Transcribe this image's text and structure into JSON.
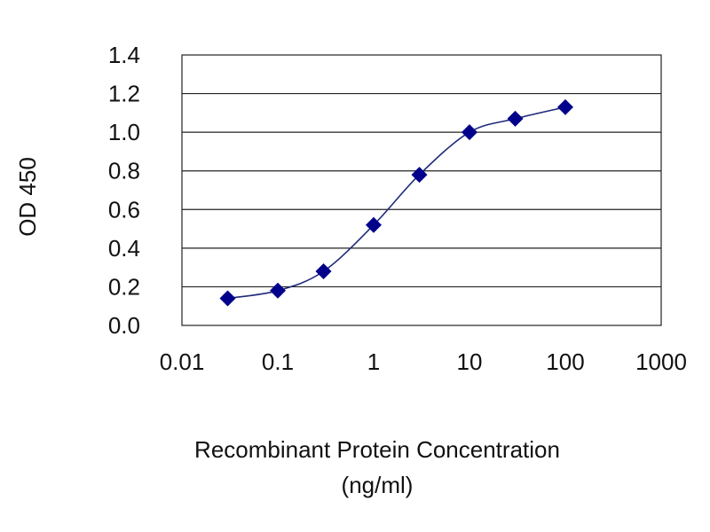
{
  "chart_data": {
    "type": "line",
    "title": "",
    "xlabel_line1": "Recombinant Protein Concentration",
    "xlabel_line2": "(ng/ml)",
    "ylabel": "OD 450",
    "x_scale": "log",
    "xlim": [
      0.01,
      1000
    ],
    "ylim": [
      0.0,
      1.4
    ],
    "x_ticks": [
      "0.01",
      "0.1",
      "1",
      "10",
      "100",
      "1000"
    ],
    "y_ticks": [
      "0.0",
      "0.2",
      "0.4",
      "0.6",
      "0.8",
      "1.0",
      "1.2",
      "1.4"
    ],
    "grid": "horizontal",
    "legend": "none",
    "series": [
      {
        "x": [
          0.03,
          0.1,
          0.3,
          1,
          3,
          10,
          30,
          100
        ],
        "y": [
          0.14,
          0.18,
          0.28,
          0.52,
          0.78,
          1.0,
          1.07,
          1.13
        ]
      }
    ],
    "colors": {
      "series": "#00008b",
      "line": "#1f2a7a",
      "grid": "#222222",
      "axis": "#222222"
    },
    "marker": "diamond"
  }
}
